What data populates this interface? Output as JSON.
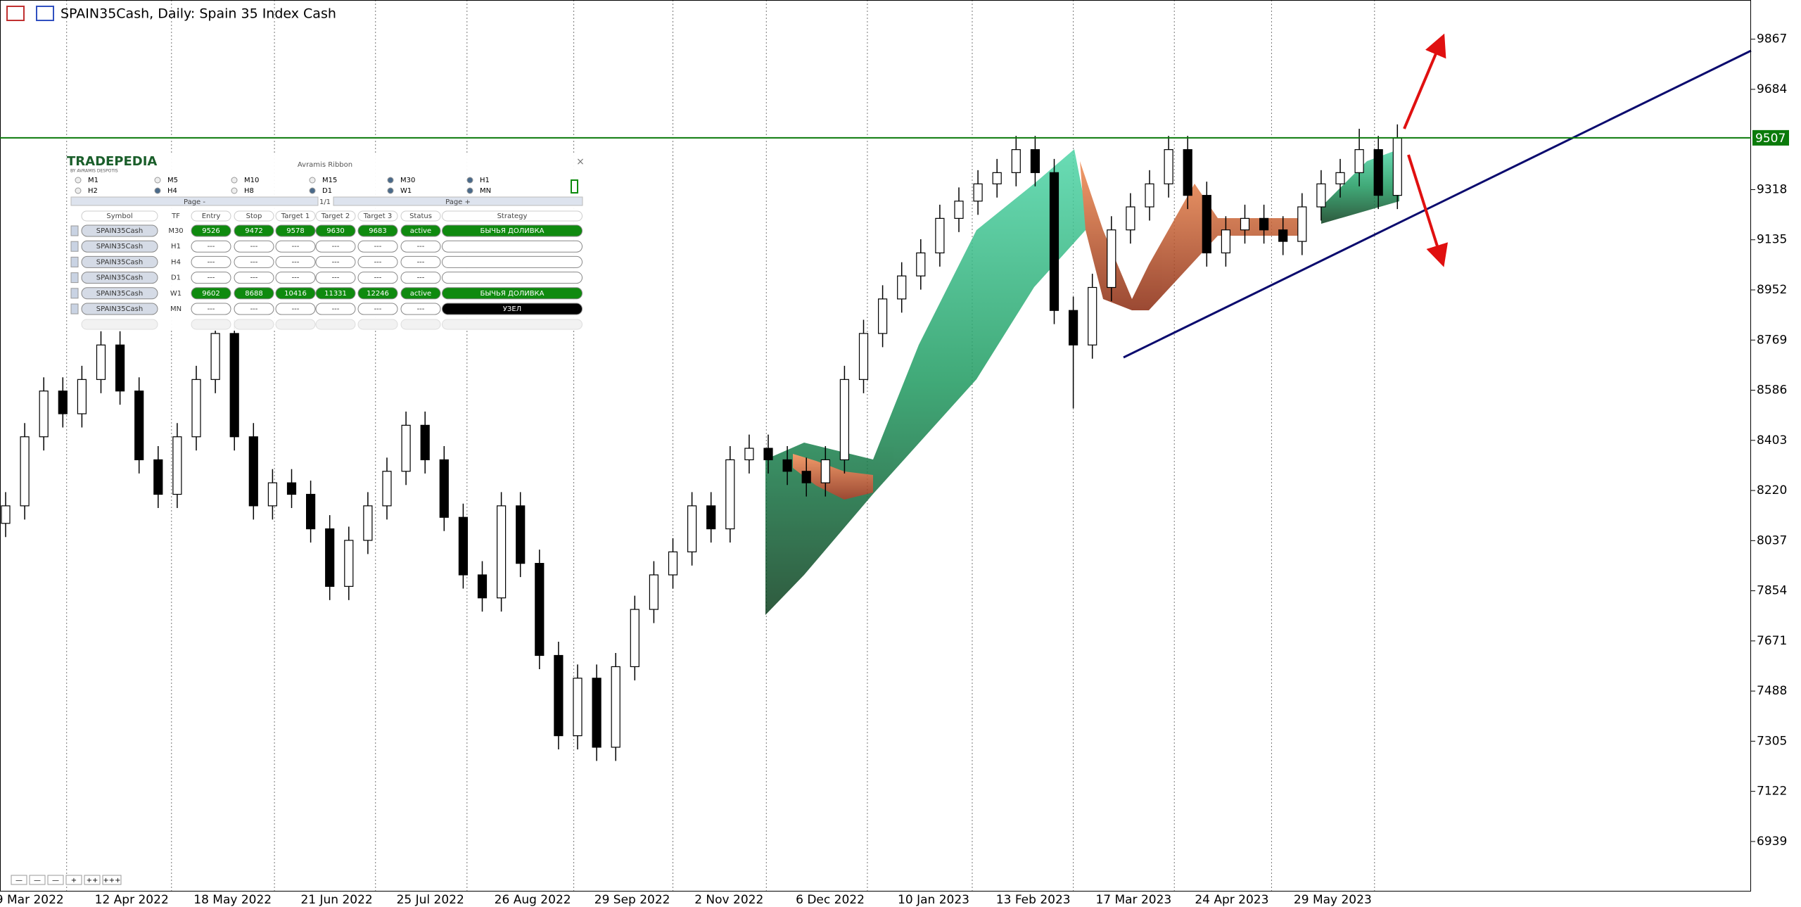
{
  "chart_data": {
    "type": "candlestick",
    "title": "SPAIN35Cash, Daily:  Spain 35 Index Cash",
    "open": [
      8100,
      8164,
      8416,
      8583,
      8500,
      8625,
      8751,
      8583,
      8332,
      8206,
      8416,
      8625,
      8793,
      8416,
      8164,
      8248,
      8206,
      8080,
      7870,
      8038,
      8164,
      8290,
      8458,
      8332,
      8122,
      7912,
      7828,
      8164,
      7954,
      7618,
      7325,
      7535,
      7283,
      7577,
      7786,
      7912,
      7996,
      8164,
      8080,
      8332,
      8374,
      8332,
      8290,
      8248,
      8332,
      8625,
      8793,
      8919,
      9003,
      9087,
      9213,
      9276,
      9339,
      9380,
      9464,
      9380,
      8877,
      8751,
      8961,
      9171,
      9255,
      9339,
      9464,
      9297,
      9087,
      9171,
      9213,
      9171,
      9129,
      9255,
      9339,
      9380,
      9464,
      9297
    ],
    "high": [
      8214,
      8466,
      8633,
      8633,
      8675,
      8801,
      8801,
      8633,
      8382,
      8466,
      8675,
      8843,
      8843,
      8466,
      8298,
      8298,
      8256,
      8130,
      8088,
      8214,
      8340,
      8508,
      8508,
      8382,
      8172,
      7962,
      8214,
      8214,
      8004,
      7668,
      7585,
      7585,
      7627,
      7836,
      7962,
      8046,
      8214,
      8214,
      8382,
      8424,
      8424,
      8382,
      8340,
      8382,
      8675,
      8843,
      8969,
      9053,
      9137,
      9263,
      9326,
      9389,
      9430,
      9514,
      9514,
      9430,
      8927,
      9011,
      9221,
      9305,
      9389,
      9514,
      9514,
      9347,
      9221,
      9263,
      9263,
      9221,
      9305,
      9389,
      9430,
      9540,
      9514,
      9556
    ],
    "low": [
      8050,
      8114,
      8366,
      8450,
      8450,
      8575,
      8533,
      8282,
      8156,
      8156,
      8366,
      8575,
      8366,
      8114,
      8114,
      8156,
      8030,
      7820,
      7820,
      7988,
      8114,
      8240,
      8282,
      8072,
      7862,
      7778,
      7778,
      7904,
      7568,
      7275,
      7275,
      7233,
      7233,
      7527,
      7736,
      7862,
      7946,
      8030,
      8030,
      8282,
      8282,
      8240,
      8198,
      8198,
      8282,
      8575,
      8743,
      8869,
      8953,
      9037,
      9163,
      9226,
      9289,
      9330,
      9330,
      8827,
      8520,
      8701,
      8911,
      9121,
      9205,
      9289,
      9247,
      9037,
      9037,
      9121,
      9121,
      9079,
      9079,
      9205,
      9289,
      9330,
      9247,
      9247
    ],
    "close": [
      8164,
      8416,
      8583,
      8500,
      8625,
      8751,
      8583,
      8332,
      8206,
      8416,
      8625,
      8793,
      8416,
      8164,
      8248,
      8206,
      8080,
      7870,
      8038,
      8164,
      8290,
      8458,
      8332,
      8122,
      7912,
      7828,
      8164,
      7954,
      7618,
      7325,
      7535,
      7283,
      7577,
      7786,
      7912,
      7996,
      8164,
      8080,
      8332,
      8374,
      8332,
      8290,
      8248,
      8332,
      8625,
      8793,
      8919,
      9003,
      9087,
      9213,
      9276,
      9339,
      9380,
      9464,
      9380,
      8877,
      8751,
      8961,
      9171,
      9255,
      9339,
      9464,
      9297,
      9087,
      9171,
      9213,
      9171,
      9129,
      9255,
      9339,
      9380,
      9464,
      9297,
      9506
    ],
    "xticks": [
      {
        "value": 3.2,
        "label": "9 Mar 2022"
      },
      {
        "value": 8.7,
        "label": "12 Apr 2022"
      },
      {
        "value": 14.1,
        "label": "18 May 2022"
      },
      {
        "value": 19.4,
        "label": "21 Jun 2022"
      },
      {
        "value": 24.2,
        "label": "25 Jul 2022"
      },
      {
        "value": 29.8,
        "label": "26 Aug 2022"
      },
      {
        "value": 35.0,
        "label": "29 Sep 2022"
      },
      {
        "value": 39.9,
        "label": "2 Nov 2022"
      },
      {
        "value": 45.2,
        "label": "6 Dec 2022"
      },
      {
        "value": 50.7,
        "label": "10 Jan 2023"
      },
      {
        "value": 56.0,
        "label": "13 Feb 2023"
      },
      {
        "value": 61.3,
        "label": "17 Mar 2023"
      },
      {
        "value": 66.4,
        "label": "24 Apr 2023"
      },
      {
        "value": 71.8,
        "label": "29 May 2023"
      }
    ],
    "ylim": [
      6759,
      10010
    ],
    "yticks": [
      6939,
      7122,
      7305,
      7488,
      7671,
      7854,
      8037,
      8220,
      8403,
      8586,
      8769,
      8952,
      9135,
      9318,
      9684,
      9867
    ],
    "current_price": 9507,
    "price_line_color": "#0a7a0a",
    "up_color": "#ffffff",
    "down_color": "#000000"
  },
  "panel": {
    "logo": "TRADEPEDIA",
    "logo_sub": "BY AVRAMIS DESPOTIS",
    "title": "Avramis Ribbon",
    "close": "×",
    "timeframes": [
      {
        "label": "M1",
        "selected": false
      },
      {
        "label": "M5",
        "selected": false
      },
      {
        "label": "M10",
        "selected": false
      },
      {
        "label": "M15",
        "selected": false
      },
      {
        "label": "M30",
        "selected": true
      },
      {
        "label": "H1",
        "selected": true
      },
      {
        "label": "H2",
        "selected": false
      },
      {
        "label": "H4",
        "selected": true
      },
      {
        "label": "H8",
        "selected": false
      },
      {
        "label": "D1",
        "selected": true
      },
      {
        "label": "W1",
        "selected": true
      },
      {
        "label": "MN",
        "selected": true
      }
    ],
    "nav": [
      "Page -",
      "1/1",
      "Page +"
    ],
    "columns": [
      "Symbol",
      "TF",
      "Entry",
      "Stop",
      "Target 1",
      "Target 2",
      "Target 3",
      "Status",
      "Strategy"
    ],
    "rows": [
      {
        "cells": [
          "SPAIN35Cash",
          "M30",
          9526,
          9472,
          9578,
          9630,
          9683,
          "active",
          "БЫЧЬЯ ДОЛИВКА"
        ],
        "fill": "#0f8a0f",
        "strategy_fill": "#0f8a0f"
      },
      {
        "cells": [
          "SPAIN35Cash",
          "H1",
          "---",
          "---",
          "---",
          "---",
          "---",
          "---",
          null
        ],
        "fill": null,
        "strategy_fill": null
      },
      {
        "cells": [
          "SPAIN35Cash",
          "H4",
          "---",
          "---",
          "---",
          "---",
          "---",
          "---",
          null
        ],
        "fill": null,
        "strategy_fill": null
      },
      {
        "cells": [
          "SPAIN35Cash",
          "D1",
          "---",
          "---",
          "---",
          "---",
          "---",
          "---",
          null
        ],
        "fill": null,
        "strategy_fill": null
      },
      {
        "cells": [
          "SPAIN35Cash",
          "W1",
          9602,
          8688,
          10416,
          11331,
          12246,
          "active",
          "БЫЧЬЯ ДОЛИВКА"
        ],
        "fill": "#0f8a0f",
        "strategy_fill": "#0f8a0f"
      },
      {
        "cells": [
          "SPAIN35Cash",
          "MN",
          "---",
          "---",
          "---",
          "---",
          "---",
          "---",
          "УЗЕЛ"
        ],
        "fill": null,
        "strategy_fill": "#000000"
      }
    ]
  },
  "zoom_buttons": [
    "—",
    "—",
    "—",
    "+",
    "++",
    "+++"
  ]
}
